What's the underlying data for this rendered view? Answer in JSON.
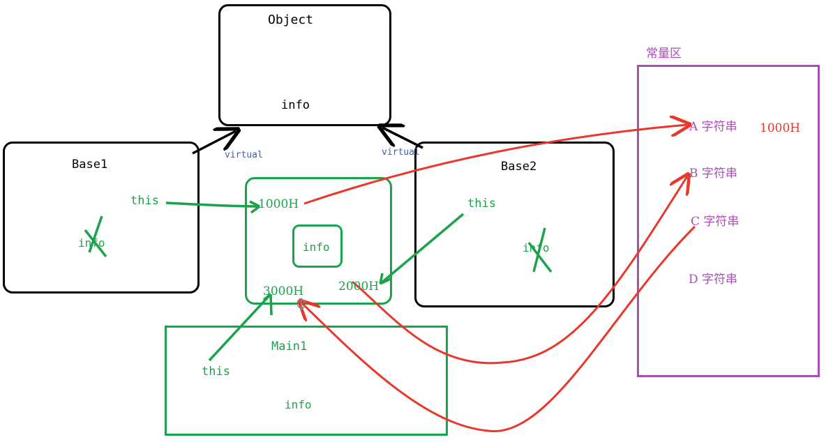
{
  "boxes": {
    "object": {
      "title": "Object",
      "field": "info"
    },
    "base1": {
      "title": "Base1",
      "field": "info"
    },
    "base2": {
      "title": "Base2",
      "field": "info"
    },
    "main1": {
      "title": "Main1",
      "this_label": "this",
      "field": "info"
    }
  },
  "edges": {
    "left_virtual": "virtual",
    "right_virtual": "virtual"
  },
  "instance": {
    "addr_top": "1000H",
    "addr_left": "3000H",
    "addr_right": "2000H",
    "inner_field": "info",
    "base1_this": "this",
    "base2_this": "this"
  },
  "constant_area": {
    "title": "常量区",
    "items": [
      "A 字符串",
      "B 字符串",
      "C 字符串",
      "D 字符串"
    ],
    "address_note": "1000H"
  },
  "colors": {
    "black": "#000000",
    "green": "#1aa34a",
    "red": "#e8372b",
    "purple": "#a84fb4",
    "blue": "#3a5fb8"
  }
}
